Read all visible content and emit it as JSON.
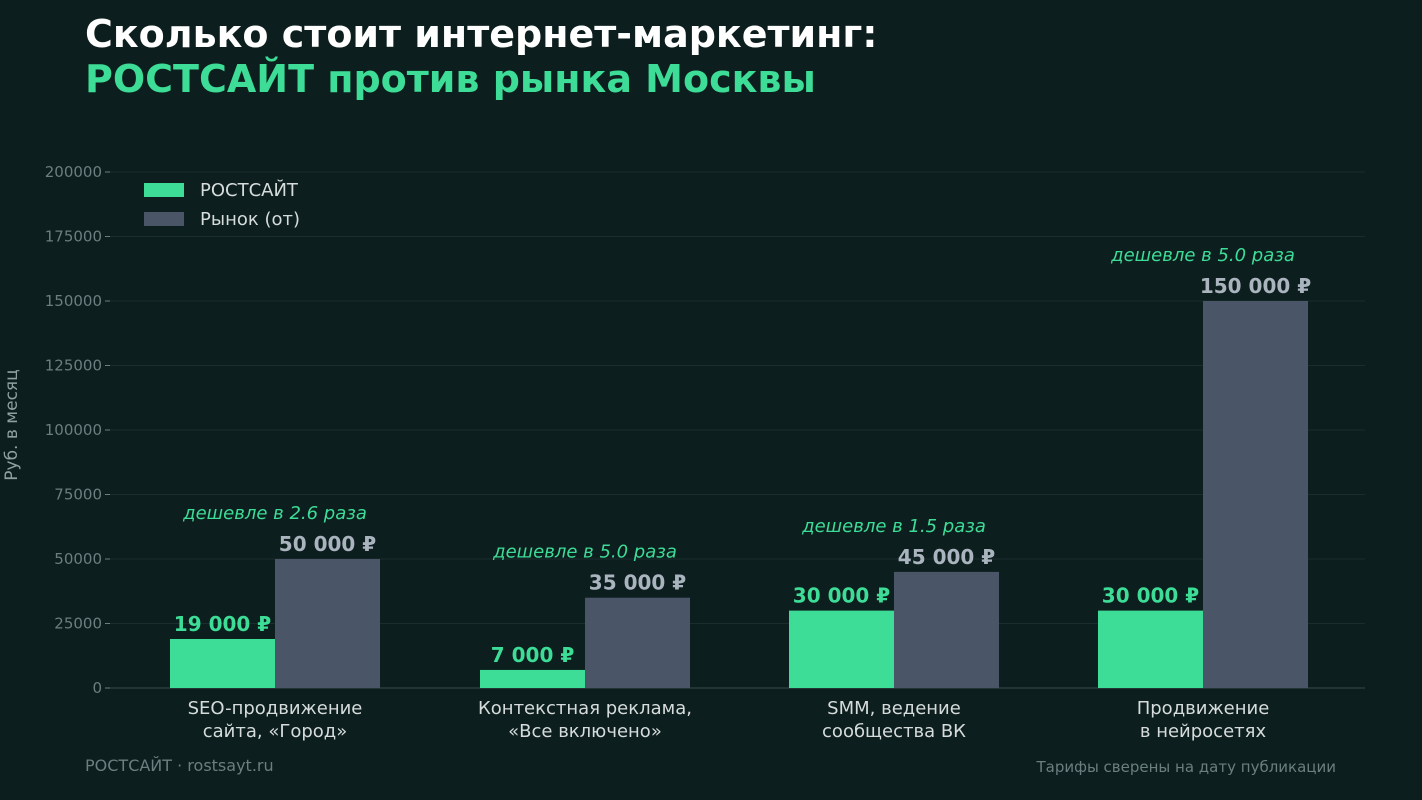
{
  "header": {
    "title_line1": "Сколько стоит интернет-маркетинг:",
    "title_line2": "РОСТСАЙТ против рынка Москвы"
  },
  "footer": {
    "left": "РОСТСАЙТ · rostsayt.ru",
    "right": "Тарифы сверены на дату публикации"
  },
  "colors": {
    "background": "#0c1e1d",
    "accent": "#3ddc97",
    "market": "#4a5568",
    "market_label": "#aab4bf",
    "grid": "#1a2e2d",
    "tick": "#6b7f80"
  },
  "chart_data": {
    "type": "bar",
    "ylabel": "Руб. в месяц",
    "ylim": [
      0,
      200000
    ],
    "yticks": [
      "0",
      "25000",
      "50000",
      "75000",
      "100000",
      "125000",
      "150000",
      "175000",
      "200000"
    ],
    "grid": true,
    "legend_position": "top-left",
    "categories": [
      [
        "SEO-продвижение",
        "сайта, «Город»"
      ],
      [
        "Контекстная реклама,",
        "«Все включено»"
      ],
      [
        "SMM, ведение",
        "сообщества ВК"
      ],
      [
        "Продвижение",
        "в нейросетях"
      ]
    ],
    "series": [
      {
        "name": "РОСТСАЙТ",
        "values": [
          19000,
          7000,
          30000,
          30000
        ],
        "labels": [
          "19 000 ₽",
          "7 000 ₽",
          "30 000 ₽",
          "30 000 ₽"
        ]
      },
      {
        "name": "Рынок (от)",
        "values": [
          50000,
          35000,
          45000,
          150000
        ],
        "labels": [
          "50 000 ₽",
          "35 000 ₽",
          "45 000 ₽",
          "150 000 ₽"
        ]
      }
    ],
    "annotations": [
      "дешевле в 2.6 раза",
      "дешевле в 5.0 раза",
      "дешевле в 1.5 раза",
      "дешевле в 5.0 раза"
    ]
  }
}
